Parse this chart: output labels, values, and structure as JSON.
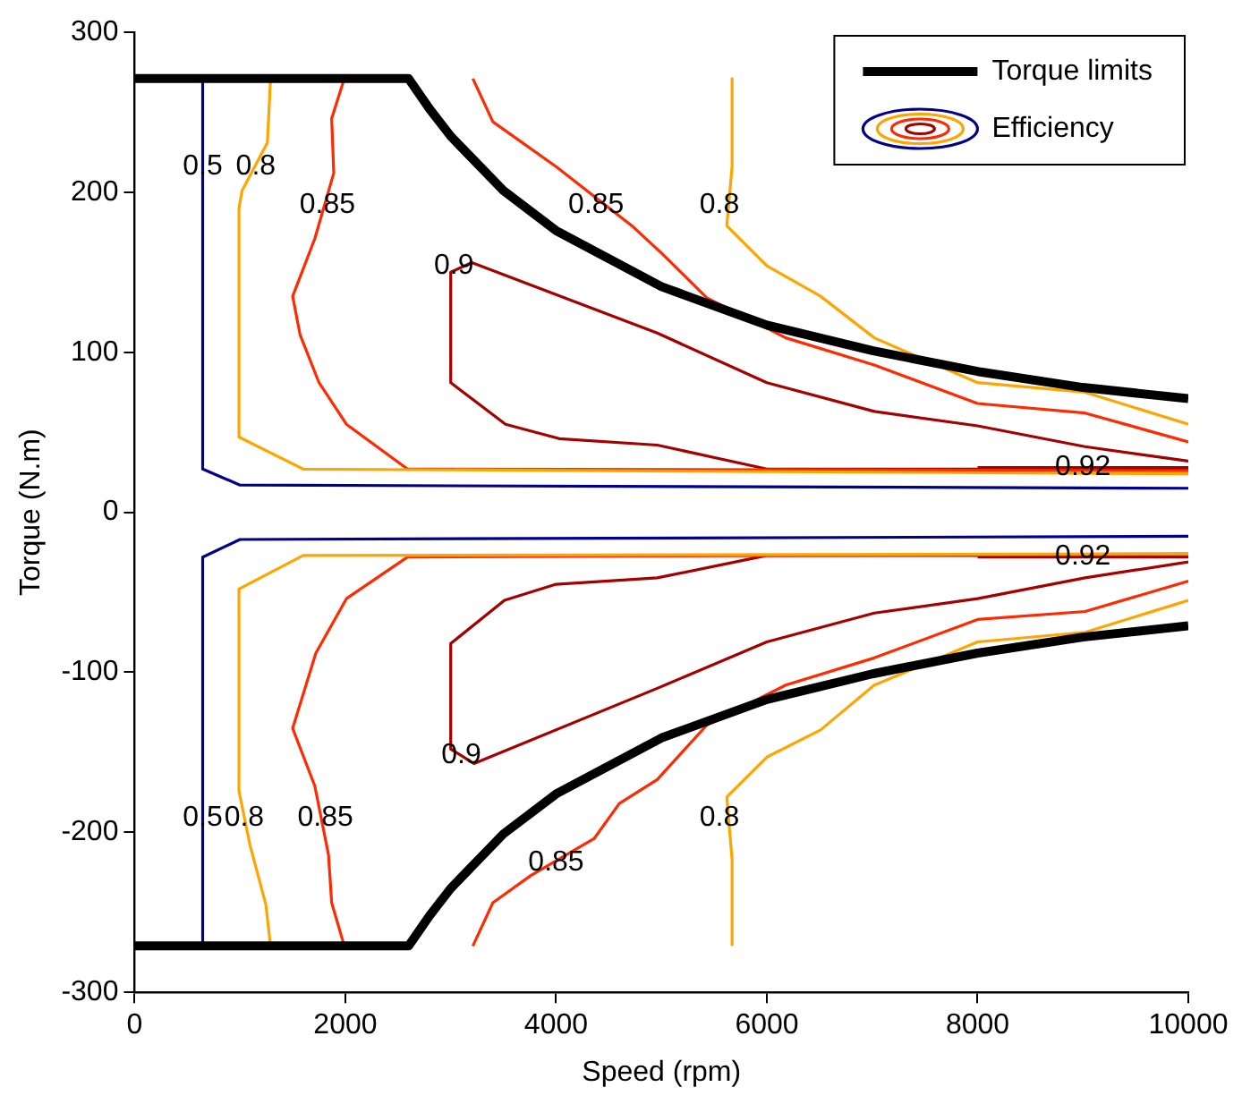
{
  "chart_data": {
    "type": "line",
    "xlabel": "Speed (rpm)",
    "ylabel": "Torque (N.m)",
    "xlim": [
      0,
      10000
    ],
    "ylim": [
      -300,
      300
    ],
    "xticks": [
      0,
      2000,
      4000,
      6000,
      8000,
      10000
    ],
    "yticks": [
      -300,
      -200,
      -100,
      0,
      100,
      200,
      300
    ],
    "legend": "top right",
    "series": [
      {
        "name": "Torque limits",
        "color": "#000000",
        "x": [
          0,
          2600,
          2800,
          3000,
          3500,
          4000,
          5000,
          6000,
          7000,
          8000,
          9000,
          10000
        ],
        "values": [
          271,
          271,
          252,
          235,
          201,
          176,
          141,
          117,
          101,
          88,
          78,
          71
        ]
      },
      {
        "color": "#000000",
        "x": [
          0,
          2600,
          2800,
          3000,
          3500,
          4000,
          5000,
          6000,
          7000,
          8000,
          9000,
          10000
        ],
        "values": [
          -271,
          -271,
          -252,
          -235,
          -201,
          -176,
          -141,
          -117,
          -101,
          -88,
          -78,
          -71
        ]
      },
      {
        "name": "Efficiency",
        "color": "#00008b",
        "x": [
          646,
          646,
          1000,
          10000
        ],
        "values": [
          271,
          27,
          17,
          15
        ]
      },
      {
        "color": "#00008b",
        "x": [
          646,
          646,
          1000,
          10000
        ],
        "values": [
          -271,
          -28,
          -17,
          -15
        ]
      },
      {
        "color": "#ffa500",
        "x": [
          1290,
          1260,
          1020,
          990,
          990,
          1600,
          10000
        ],
        "values": [
          271,
          231,
          201,
          190,
          47,
          27,
          24
        ]
      },
      {
        "color": "#ffa500",
        "x": [
          1290,
          1245,
          1095,
          990,
          990,
          1600,
          10000
        ],
        "values": [
          -271,
          -245,
          -208,
          -174,
          -48,
          -27,
          -26
        ]
      },
      {
        "color": "#ffa500",
        "x": [
          5670,
          5670,
          5620,
          6000,
          6510,
          7020,
          8000,
          9020,
          10000
        ],
        "values": [
          271,
          216,
          179,
          154,
          135,
          109,
          81,
          75,
          55
        ]
      },
      {
        "color": "#ffa500",
        "x": [
          5670,
          5670,
          5620,
          6000,
          6510,
          7020,
          8000,
          9020,
          10000
        ],
        "values": [
          -271,
          -217,
          -178,
          -153,
          -136,
          -108,
          -81,
          -75,
          -55
        ]
      },
      {
        "color": "#ff2a00",
        "x": [
          1990,
          1870,
          1890,
          1710,
          1500,
          1570,
          1750,
          2010,
          2590,
          10000
        ],
        "values": [
          271,
          246,
          212,
          171,
          135,
          111,
          81,
          55,
          27,
          26
        ]
      },
      {
        "color": "#ff2a00",
        "x": [
          1990,
          1870,
          1840,
          1710,
          1500,
          1720,
          2010,
          2590,
          10000
        ],
        "values": [
          -271,
          -244,
          -214,
          -171,
          -135,
          -88,
          -54,
          -28,
          -26
        ]
      },
      {
        "color": "#ff2a00",
        "x": [
          3210,
          3400,
          4000,
          4720,
          5000,
          5430,
          6180,
          7020,
          8000,
          9020,
          10000
        ],
        "values": [
          271,
          244,
          216,
          179,
          162,
          134,
          109,
          92,
          68,
          62,
          44
        ]
      },
      {
        "color": "#ff2a00",
        "x": [
          3210,
          3400,
          3760,
          4360,
          4600,
          4960,
          5430,
          6180,
          7020,
          8000,
          9020,
          10000
        ],
        "values": [
          -271,
          -244,
          -227,
          -204,
          -182,
          -167,
          -133,
          -108,
          -91,
          -67,
          -62,
          -43
        ]
      },
      {
        "color": "#a50000",
        "x": [
          10000,
          9020,
          8000,
          7020,
          6000,
          4960,
          3200,
          3000,
          3000,
          3520,
          4030,
          4960,
          6000,
          10000
        ],
        "values": [
          32,
          41,
          54,
          63,
          81,
          112,
          156,
          150,
          81,
          55,
          46,
          42,
          27,
          27
        ]
      },
      {
        "color": "#a50000",
        "x": [
          10000,
          9020,
          8000,
          7020,
          6000,
          4960,
          3220,
          3000,
          3000,
          3510,
          4000,
          4960,
          6000,
          10000
        ],
        "values": [
          -31,
          -41,
          -54,
          -63,
          -81,
          -110,
          -157,
          -148,
          -82,
          -55,
          -45,
          -41,
          -27,
          -27
        ]
      },
      {
        "color": "#a50000",
        "x": [
          8000,
          10000
        ],
        "values": [
          28,
          28
        ]
      },
      {
        "color": "#a50000",
        "x": [
          8000,
          10000
        ],
        "values": [
          -28,
          -28
        ]
      }
    ],
    "annotations": [
      {
        "text": "0.5",
        "x": 646,
        "y": 216
      },
      {
        "text": "0.8",
        "x": 1150,
        "y": 216
      },
      {
        "text": "0.85",
        "x": 1830,
        "y": 192
      },
      {
        "text": "0.85",
        "x": 4380,
        "y": 192
      },
      {
        "text": "0.9",
        "x": 3030,
        "y": 154
      },
      {
        "text": "0.8",
        "x": 5550,
        "y": 192
      },
      {
        "text": "0.92",
        "x": 9000,
        "y": 28
      },
      {
        "text": "0.5",
        "x": 646,
        "y": -191
      },
      {
        "text": "0.8",
        "x": 1040,
        "y": -191
      },
      {
        "text": "0.85",
        "x": 1810,
        "y": -191
      },
      {
        "text": "0.9",
        "x": 3100,
        "y": -152
      },
      {
        "text": "0.85",
        "x": 4000,
        "y": -219
      },
      {
        "text": "0.8",
        "x": 5550,
        "y": -191
      },
      {
        "text": "0.92",
        "x": 9000,
        "y": -28
      }
    ]
  }
}
